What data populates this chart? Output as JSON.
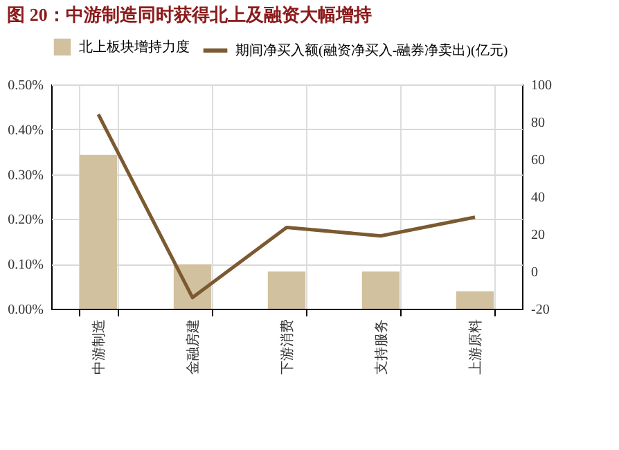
{
  "chart_data": {
    "type": "bar",
    "title": "图 20：中游制造同时获得北上及融资大幅增持",
    "categories": [
      "中游制造",
      "金融房建",
      "下游消费",
      "支持服务",
      "上游原料"
    ],
    "series": [
      {
        "name": "北上板块增持力度",
        "color": "#d2c19f",
        "values": [
          0.343,
          0.099,
          0.083,
          0.083,
          0.039
        ]
      },
      {
        "name": "期间净买入额(融资净买入-融券净卖出)(亿元)",
        "type": "line",
        "axis": "y2",
        "color": "#7b5a31",
        "values": [
          84,
          -14,
          23.5,
          19,
          29
        ]
      }
    ],
    "ylim": [
      0,
      0.5
    ],
    "yticks": [
      {
        "value": 0,
        "label": "0.00%"
      },
      {
        "value": 0.1,
        "label": "0.10%"
      },
      {
        "value": 0.2,
        "label": "0.20%"
      },
      {
        "value": 0.3,
        "label": "0.30%"
      },
      {
        "value": 0.4,
        "label": "0.40%"
      },
      {
        "value": 0.5,
        "label": "0.50%"
      }
    ],
    "y2lim": [
      -20,
      100
    ],
    "y2ticks": [
      -20,
      0,
      20,
      40,
      60,
      80,
      100
    ],
    "grid": true,
    "legend": "top",
    "marker": "none"
  }
}
